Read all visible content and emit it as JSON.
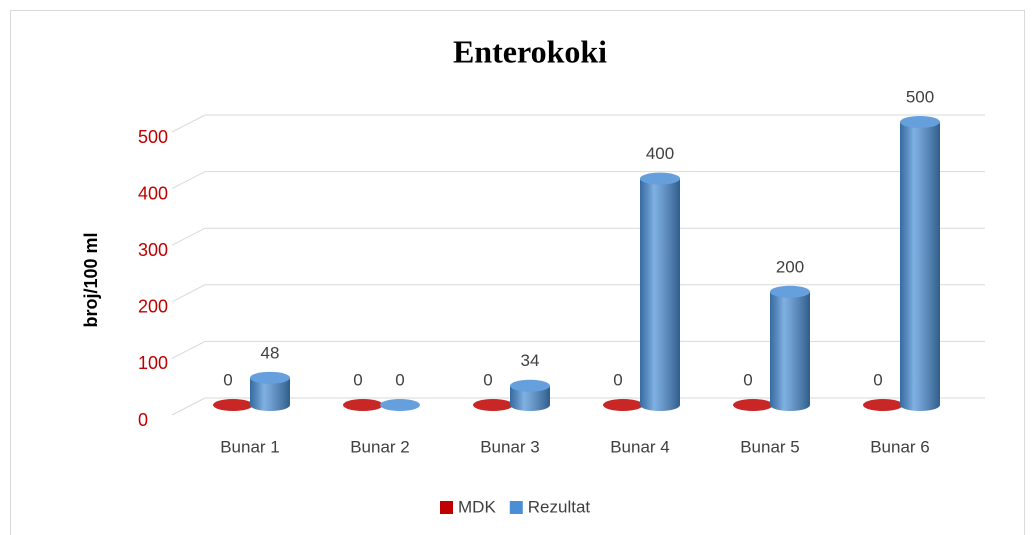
{
  "chart_data": {
    "type": "bar",
    "title": "Enterokoki",
    "y_label": "broj/100 ml",
    "categories": [
      "Bunar 1",
      "Bunar 2",
      "Bunar 3",
      "Bunar 4",
      "Bunar 5",
      "Bunar 6"
    ],
    "series": [
      {
        "name": "MDK",
        "color": "#c00000",
        "values": [
          0,
          0,
          0,
          0,
          0,
          0
        ]
      },
      {
        "name": "Rezultat",
        "color": "#4a8fd6",
        "values": [
          48,
          0,
          34,
          400,
          200,
          500
        ]
      }
    ],
    "ylim": [
      0,
      500
    ],
    "yticks": [
      0,
      100,
      200,
      300,
      400,
      500
    ],
    "grid": true,
    "legend": "bottom"
  }
}
